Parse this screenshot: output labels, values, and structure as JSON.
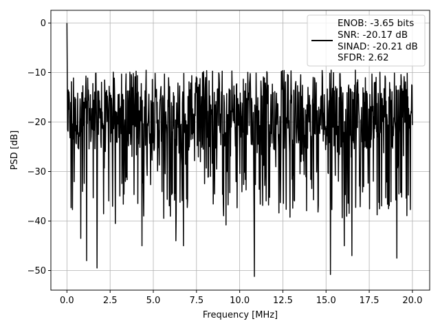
{
  "chart_data": {
    "type": "line",
    "title": "",
    "xlabel": "Frequency [MHz]",
    "ylabel": "PSD [dB]",
    "xlim": [
      -0.93,
      21.0
    ],
    "ylim": [
      -53.96,
      2.57
    ],
    "x_ticks": [
      0.0,
      2.5,
      5.0,
      7.5,
      10.0,
      12.5,
      15.0,
      17.5,
      20.0
    ],
    "x_tick_labels": [
      "0.0",
      "2.5",
      "5.0",
      "7.5",
      "10.0",
      "12.5",
      "15.0",
      "17.5",
      "20.0"
    ],
    "y_ticks": [
      0,
      -10,
      -20,
      -30,
      -40,
      -50
    ],
    "y_tick_labels": [
      "0",
      "−10",
      "−20",
      "−30",
      "−40",
      "−50"
    ],
    "grid": true,
    "legend_position": "top-right",
    "legend_entries": [
      "ENOB: -3.65 bits",
      "SNR: -20.17 dB",
      "SINAD: -20.21 dB",
      "SFDR: 2.62"
    ],
    "series": [
      {
        "color": "#000000",
        "x_range": [
          0.0,
          20.0
        ],
        "num_points": 1000,
        "peak": {
          "x": 0.0,
          "y": 0.0
        },
        "noise_floor_median": -19.5,
        "envelope_top": -9.5,
        "notable_dips": [
          {
            "x": 0.8,
            "y": -43.5
          },
          {
            "x": 1.15,
            "y": -48.0
          },
          {
            "x": 1.75,
            "y": -49.5
          },
          {
            "x": 2.8,
            "y": -40.5
          },
          {
            "x": 4.35,
            "y": -45.0
          },
          {
            "x": 6.3,
            "y": -44.0
          },
          {
            "x": 6.75,
            "y": -45.0
          },
          {
            "x": 9.2,
            "y": -40.8
          },
          {
            "x": 10.85,
            "y": -51.2
          },
          {
            "x": 15.25,
            "y": -50.8
          },
          {
            "x": 16.05,
            "y": -45.0
          },
          {
            "x": 16.5,
            "y": -47.0
          },
          {
            "x": 19.1,
            "y": -47.5
          }
        ]
      }
    ]
  }
}
